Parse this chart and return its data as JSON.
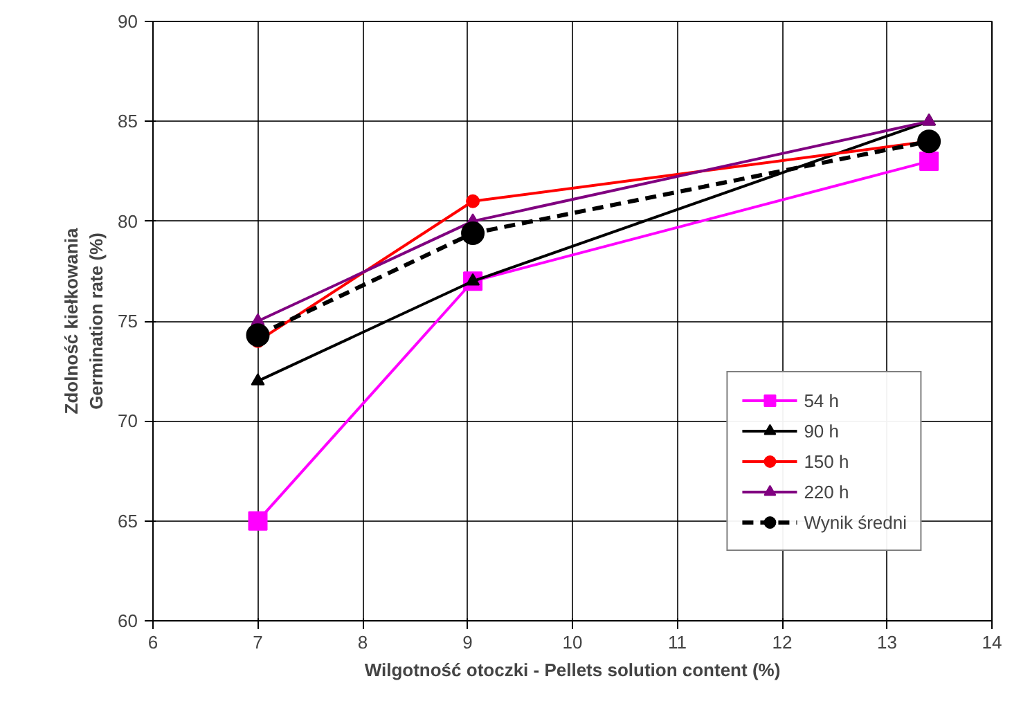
{
  "chart_data": {
    "type": "line",
    "xlabel": "Wilgotność otoczki - Pellets solution content (%)",
    "ylabel": "Zdolność kiełkowania\nGermination rate (%)",
    "x": [
      7,
      9.05,
      13.4
    ],
    "xlim": [
      6,
      14
    ],
    "xticks": [
      6,
      7,
      8,
      9,
      10,
      11,
      12,
      13,
      14
    ],
    "ylim": [
      60,
      90
    ],
    "yticks": [
      60,
      65,
      70,
      75,
      80,
      85,
      90
    ],
    "grid": true,
    "legend": "bottom right",
    "series": [
      {
        "name": "54 h",
        "color": "#ff00ff",
        "values": [
          65,
          77,
          83
        ],
        "marker": "square",
        "line_style": "solid"
      },
      {
        "name": "90 h",
        "color": "#000000",
        "values": [
          72,
          77,
          85
        ],
        "marker": "triangle",
        "line_style": "solid"
      },
      {
        "name": "150 h",
        "color": "#ff0000",
        "values": [
          74,
          81,
          84
        ],
        "marker": "circle",
        "line_style": "solid"
      },
      {
        "name": "220 h",
        "color": "#800080",
        "values": [
          75,
          80,
          85
        ],
        "marker": "triangle",
        "line_style": "solid"
      },
      {
        "name": "Wynik średni",
        "color": "#000000",
        "values": [
          74.3,
          79.4,
          84
        ],
        "marker": "circle",
        "line_style": "dashed"
      }
    ]
  }
}
